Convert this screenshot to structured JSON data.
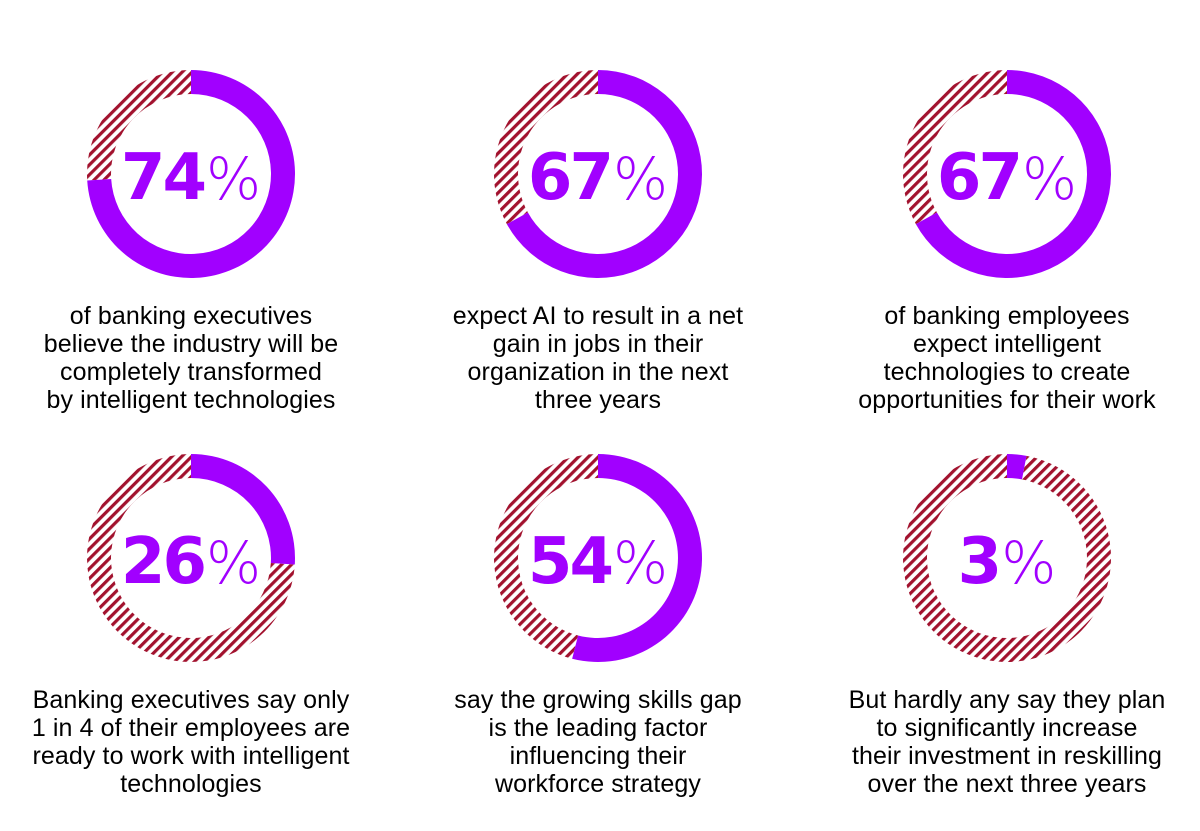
{
  "colors": {
    "accent": "#a100ff",
    "remainder_hatch": "#a2122e"
  },
  "chart_data": [
    {
      "type": "donut",
      "value": 74,
      "max": 100,
      "label": "74",
      "unit": "%",
      "caption": [
        "of banking executives",
        "believe the industry will be",
        "completely transformed",
        "by intelligent technologies"
      ]
    },
    {
      "type": "donut",
      "value": 67,
      "max": 100,
      "label": "67",
      "unit": "%",
      "caption": [
        "expect AI to result in a net",
        "gain in jobs in their",
        "organization in the next",
        "three years"
      ]
    },
    {
      "type": "donut",
      "value": 67,
      "max": 100,
      "label": "67",
      "unit": "%",
      "caption": [
        "of banking employees",
        "expect intelligent",
        "technologies to create",
        "opportunities for their work"
      ]
    },
    {
      "type": "donut",
      "value": 26,
      "max": 100,
      "label": "26",
      "unit": "%",
      "caption": [
        "Banking executives say only",
        "1 in 4 of their employees are",
        "ready to work with intelligent",
        "technologies"
      ]
    },
    {
      "type": "donut",
      "value": 54,
      "max": 100,
      "label": "54",
      "unit": "%",
      "caption": [
        "say the growing skills gap",
        "is the leading factor",
        "influencing their",
        "workforce strategy"
      ]
    },
    {
      "type": "donut",
      "value": 3,
      "max": 100,
      "label": "3",
      "unit": "%",
      "caption": [
        "But hardly any say they plan",
        "to significantly increase",
        "their investment in reskilling",
        "over the next three years"
      ]
    }
  ]
}
